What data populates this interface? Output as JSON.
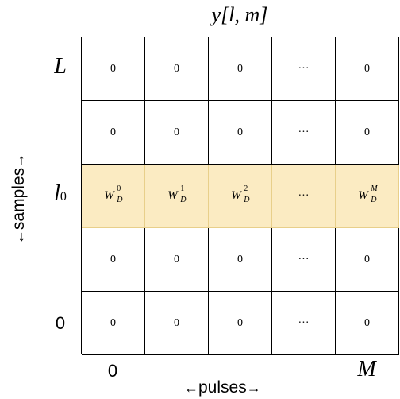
{
  "title": "y[l, m]",
  "row_labels": {
    "top": "L",
    "highlight": "l",
    "highlight_sub": "0",
    "bottom": "0"
  },
  "col_labels": {
    "left": "0",
    "right": "M"
  },
  "axis_x": {
    "arrow_left": "←",
    "label": "pulses",
    "arrow_right": "→"
  },
  "axis_y": {
    "arrow_left": "←",
    "label": "samples",
    "arrow_right": "→"
  },
  "rows": [
    [
      "0",
      "0",
      "0",
      "···",
      "0"
    ],
    [
      "0",
      "0",
      "0",
      "···",
      "0"
    ],
    null,
    [
      "0",
      "0",
      "0",
      "···",
      "0"
    ],
    [
      "0",
      "0",
      "0",
      "···",
      "0"
    ]
  ],
  "highlight_row": {
    "cells": [
      {
        "base": "W",
        "sub": "D",
        "sup": "0"
      },
      {
        "base": "W",
        "sub": "D",
        "sup": "1"
      },
      {
        "base": "W",
        "sub": "D",
        "sup": "2"
      },
      {
        "dots": "···"
      },
      {
        "base": "W",
        "sub": "D",
        "sup": "M"
      }
    ]
  },
  "colors": {
    "highlight_fill": "#fbebc2",
    "highlight_border": "#e8cf8a",
    "grid_line": "#000000"
  }
}
